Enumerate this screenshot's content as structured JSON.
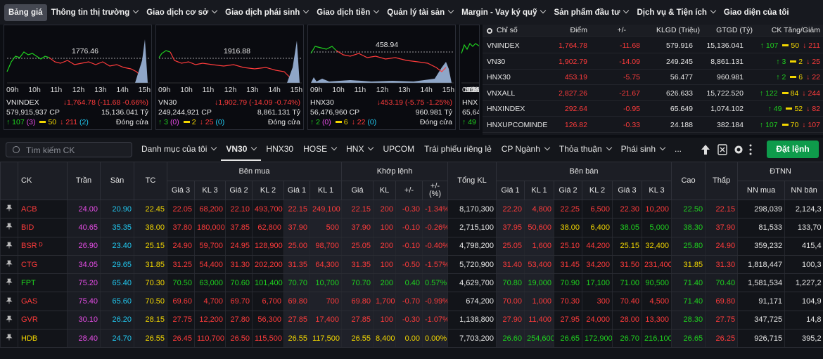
{
  "nav": [
    "Bảng giá",
    "Thông tin thị trường",
    "Giao dịch cơ sở",
    "Giao dịch phái sinh",
    "Giao dịch tiền",
    "Quản lý tài sản",
    "Margin - Vay ký quỹ",
    "Sản phẩm đầu tư",
    "Dịch vụ & Tiện ích",
    "Giao diện của tôi"
  ],
  "index_cards": [
    {
      "name": "VNINDEX",
      "ref_level": "1776.46",
      "change": "↓1,764.78 (-11.68 -0.66%)",
      "volume": "579,915,937 CP",
      "value": "15,136.041 Tỷ",
      "up": "107",
      "up_ceiling": "(3)",
      "unchanged": "50",
      "down": "211",
      "down_floor": "(2)",
      "status": "Đóng cửa"
    },
    {
      "name": "VN30",
      "ref_level": "1916.88",
      "change": "↓1,902.79 (-14.09 -0.74%)",
      "volume": "249,244,921 CP",
      "value": "8,861.131 Tỷ",
      "up": "3",
      "up_ceiling": "(0)",
      "unchanged": "2",
      "down": "25",
      "down_floor": "(0)",
      "status": "Đóng cửa"
    },
    {
      "name": "HNX30",
      "ref_level": "458.94",
      "change": "↓453.19 (-5.75 -1.25%)",
      "volume": "56,476,960 CP",
      "value": "960.981 Tỷ",
      "up": "2",
      "up_ceiling": "(0)",
      "unchanged": "6",
      "down": "22",
      "down_floor": "(0)",
      "status": "Đóng cửa"
    },
    {
      "name": "HNX",
      "volume": "65,64",
      "up": "49"
    }
  ],
  "time_labels": [
    "09h",
    "10h",
    "11h",
    "12h",
    "13h",
    "14h",
    "15h"
  ],
  "index_table": {
    "headers": [
      "Chỉ số",
      "Điểm",
      "+/-",
      "KLGD (Triệu)",
      "GTGD (Tỷ)",
      "CK Tăng/Giảm"
    ],
    "rows": [
      [
        "VNINDEX",
        "1,764.78",
        "-11.68",
        "579.916",
        "15,136.041",
        "107",
        "50",
        "211"
      ],
      [
        "VN30",
        "1,902.79",
        "-14.09",
        "249.245",
        "8,861.131",
        "3",
        "2",
        "25"
      ],
      [
        "HNX30",
        "453.19",
        "-5.75",
        "56.477",
        "960.981",
        "2",
        "6",
        "22"
      ],
      [
        "VNXALL",
        "2,827.26",
        "-21.67",
        "626.633",
        "15,722.520",
        "122",
        "84",
        "244"
      ],
      [
        "HNXINDEX",
        "292.64",
        "-0.95",
        "65.649",
        "1,074.102",
        "49",
        "52",
        "82"
      ],
      [
        "HNXUPCOMINDE",
        "126.82",
        "-0.33",
        "24.188",
        "382.184",
        "107",
        "70",
        "107"
      ]
    ]
  },
  "toolbar": {
    "search_placeholder": "Tìm kiếm CK",
    "tabs": [
      "Danh mục của tôi",
      "VN30",
      "HNX30",
      "HOSE",
      "HNX",
      "UPCOM",
      "Trái phiếu riêng lẻ",
      "CP Ngành",
      "Thỏa thuận",
      "Phái sinh"
    ],
    "more": "...",
    "order_button": "Đặt lệnh"
  },
  "price_table": {
    "header_top": [
      "CK",
      "Trần",
      "Sàn",
      "TC",
      "Bên mua",
      "Khớp lệnh",
      "Tổng KL",
      "Bên bán",
      "Cao",
      "Thấp",
      "ĐTNN"
    ],
    "header_sub": [
      "Giá 3",
      "KL 3",
      "Giá 2",
      "KL 2",
      "Giá 1",
      "KL 1",
      "Giá",
      "KL",
      "+/-",
      "+/- (%)",
      "Giá 1",
      "KL 1",
      "Giá 2",
      "KL 2",
      "Giá 3",
      "KL 3",
      "NN mua",
      "NN bán"
    ],
    "rows": [
      [
        "ACB",
        "24.00",
        "20.90",
        "22.45",
        "22.05",
        "68,200",
        "22.10",
        "493,700",
        "22.15",
        "249,100",
        "22.15",
        "200",
        "-0.30",
        "-1.34%",
        "8,170,300",
        "22.20",
        "4,800",
        "22.25",
        "6,500",
        "22.30",
        "10,200",
        "22.50",
        "22.15",
        "298,039",
        "2,124,3"
      ],
      [
        "BID",
        "40.65",
        "35.35",
        "38.00",
        "37.80",
        "180,000",
        "37.85",
        "62,800",
        "37.90",
        "500",
        "37.90",
        "100",
        "-0.10",
        "-0.26%",
        "2,715,100",
        "37.95",
        "50,600",
        "38.00",
        "6,400",
        "38.05",
        "5,000",
        "38.30",
        "37.90",
        "81,533",
        "133,70"
      ],
      [
        "BSR ᴰ",
        "26.90",
        "23.40",
        "25.15",
        "24.90",
        "59,700",
        "24.95",
        "128,900",
        "25.00",
        "98,700",
        "25.05",
        "200",
        "-0.10",
        "-0.40%",
        "4,798,200",
        "25.05",
        "1,600",
        "25.10",
        "44,200",
        "25.15",
        "32,400",
        "25.80",
        "24.90",
        "359,232",
        "415,4"
      ],
      [
        "CTG",
        "34.05",
        "29.65",
        "31.85",
        "31.25",
        "54,400",
        "31.30",
        "202,200",
        "31.35",
        "64,300",
        "31.35",
        "100",
        "-0.50",
        "-1.57%",
        "5,720,900",
        "31.40",
        "53,400",
        "31.45",
        "34,200",
        "31.50",
        "231,400",
        "31.85",
        "31.30",
        "1,818,447",
        "100,3"
      ],
      [
        "FPT",
        "75.20",
        "65.40",
        "70.30",
        "70.50",
        "63,000",
        "70.60",
        "101,400",
        "70.70",
        "10,700",
        "70.70",
        "200",
        "0.40",
        "0.57%",
        "4,629,700",
        "70.80",
        "19,000",
        "70.90",
        "17,100",
        "71.00",
        "90,500",
        "71.40",
        "70.40",
        "1,581,534",
        "1,227,2"
      ],
      [
        "GAS",
        "75.40",
        "65.60",
        "70.50",
        "69.60",
        "4,700",
        "69.70",
        "6,700",
        "69.80",
        "700",
        "69.80",
        "1,700",
        "-0.70",
        "-0.99%",
        "674,200",
        "70.00",
        "1,000",
        "70.30",
        "300",
        "70.40",
        "4,500",
        "71.40",
        "69.80",
        "91,171",
        "104,9"
      ],
      [
        "GVR",
        "30.10",
        "26.20",
        "28.15",
        "27.75",
        "12,200",
        "27.80",
        "56,300",
        "27.85",
        "17,400",
        "27.85",
        "100",
        "-0.30",
        "-1.07%",
        "1,138,800",
        "27.90",
        "11,400",
        "27.95",
        "24,000",
        "28.00",
        "13,300",
        "28.30",
        "27.75",
        "347,725",
        "14,8"
      ],
      [
        "HDB",
        "28.40",
        "24.70",
        "26.55",
        "26.45",
        "110,700",
        "26.50",
        "115,500",
        "26.55",
        "117,500",
        "26.55",
        "8,400",
        "0.00",
        "0.00%",
        "7,703,200",
        "26.60",
        "254,600",
        "26.65",
        "172,900",
        "26.70",
        "216,100",
        "26.65",
        "26.25",
        "926,715",
        "395,2"
      ]
    ]
  }
}
